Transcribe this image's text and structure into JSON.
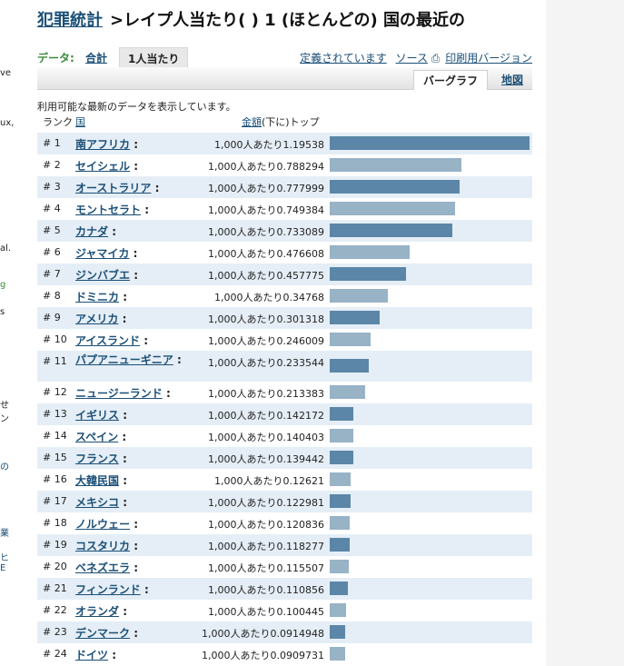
{
  "page": {
    "title_brand": "犯罪統計",
    "title_rest": ">レイプ人当たり( ) 1 (ほとんどの) 国の最近の",
    "data_label": "データ:",
    "tab_total": "合計",
    "tab_per_capita": "1人当たり",
    "link_defined": "定義されています",
    "link_source": "ソース",
    "link_print": "印刷用バージョン",
    "view_bar": "バーグラフ",
    "view_map": "地図",
    "note": "利用可能な最新のデータを表示しています。",
    "hdr_rank": "ランク",
    "hdr_country": "国",
    "hdr_amount_link": "金額",
    "hdr_amount_rest": "(下に)トップ",
    "accent_color": "#1b4f77",
    "bar_dark": "#5b86a8",
    "bar_light": "#98b2c6"
  },
  "left_strip": [
    "ve",
    "ux,",
    "al.",
    "g",
    "s",
    "せ",
    "ン",
    "の",
    "業",
    "ヒ",
    "E"
  ],
  "rows": [
    {
      "rank": "# 1",
      "country": "南アフリカ",
      "amount": "1,000人あたり1.19538",
      "value": 1.19538
    },
    {
      "rank": "# 2",
      "country": "セイシェル",
      "amount": "1,000人あたり0.788294",
      "value": 0.788294
    },
    {
      "rank": "# 3",
      "country": "オーストラリア",
      "amount": "1,000人あたり0.777999",
      "value": 0.777999
    },
    {
      "rank": "# 4",
      "country": "モントセラト",
      "amount": "1,000人あたり0.749384",
      "value": 0.749384
    },
    {
      "rank": "# 5",
      "country": "カナダ",
      "amount": "1,000人あたり0.733089",
      "value": 0.733089
    },
    {
      "rank": "# 6",
      "country": "ジャマイカ",
      "amount": "1,000人あたり0.476608",
      "value": 0.476608
    },
    {
      "rank": "# 7",
      "country": "ジンバブエ",
      "amount": "1,000人あたり0.457775",
      "value": 0.457775
    },
    {
      "rank": "# 8",
      "country": "ドミニカ",
      "amount": "1,000人あたり0.34768",
      "value": 0.34768
    },
    {
      "rank": "# 9",
      "country": "アメリカ",
      "amount": "1,000人あたり0.301318",
      "value": 0.301318
    },
    {
      "rank": "# 10",
      "country": "アイスランド",
      "amount": "1,000人あたり0.246009",
      "value": 0.246009
    },
    {
      "rank": "# 11",
      "country": "パプアニューギニア",
      "amount": "1,000人あたり0.233544",
      "value": 0.233544
    },
    {
      "rank": "# 12",
      "country": "ニュージーランド",
      "amount": "1,000人あたり0.213383",
      "value": 0.213383
    },
    {
      "rank": "# 13",
      "country": "イギリス",
      "amount": "1,000人あたり0.142172",
      "value": 0.142172
    },
    {
      "rank": "# 14",
      "country": "スペイン",
      "amount": "1,000人あたり0.140403",
      "value": 0.140403
    },
    {
      "rank": "# 15",
      "country": "フランス",
      "amount": "1,000人あたり0.139442",
      "value": 0.139442
    },
    {
      "rank": "# 16",
      "country": "大韓民国",
      "amount": "1,000人あたり0.12621",
      "value": 0.12621
    },
    {
      "rank": "# 17",
      "country": "メキシコ",
      "amount": "1,000人あたり0.122981",
      "value": 0.122981
    },
    {
      "rank": "# 18",
      "country": "ノルウェー",
      "amount": "1,000人あたり0.120836",
      "value": 0.120836
    },
    {
      "rank": "# 19",
      "country": "コスタリカ",
      "amount": "1,000人あたり0.118277",
      "value": 0.118277
    },
    {
      "rank": "# 20",
      "country": "ベネズエラ",
      "amount": "1,000人あたり0.115507",
      "value": 0.115507
    },
    {
      "rank": "# 21",
      "country": "フィンランド",
      "amount": "1,000人あたり0.110856",
      "value": 0.110856
    },
    {
      "rank": "# 22",
      "country": "オランダ",
      "amount": "1,000人あたり0.100445",
      "value": 0.100445
    },
    {
      "rank": "# 23",
      "country": "デンマーク",
      "amount": "1,000人あたり0.0914948",
      "value": 0.0914948
    },
    {
      "rank": "# 24",
      "country": "ドイツ",
      "amount": "1,000人あたり0.0909731",
      "value": 0.0909731
    }
  ]
}
